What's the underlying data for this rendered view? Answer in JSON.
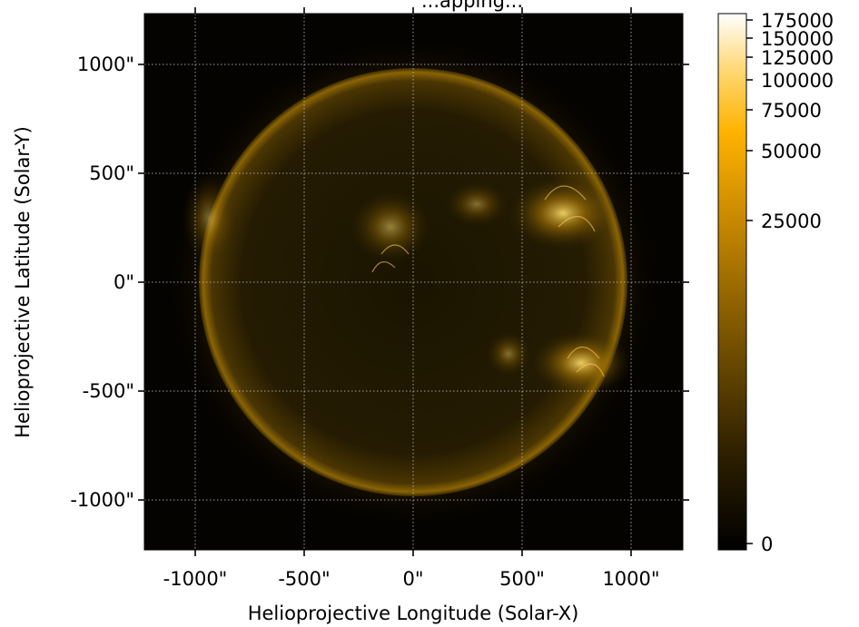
{
  "plot": {
    "title": "...apping...",
    "xlabel": "Helioprojective Longitude (Solar-X)",
    "ylabel": "Helioprojective Latitude (Solar-Y)",
    "x_ticks": [
      "-1000\"",
      "-500\"",
      "0\"",
      "500\"",
      "1000\""
    ],
    "y_ticks": [
      "1000\"",
      "500\"",
      "0\"",
      "-500\"",
      "-1000\""
    ],
    "grid": "dotted",
    "colors": {
      "background": "#050300",
      "disk": "#2a1f02",
      "limb": "#9a7006",
      "bright": "#ffd040"
    }
  },
  "colorbar": {
    "labels": [
      "175000",
      "150000",
      "125000",
      "100000",
      "75000",
      "50000",
      "25000",
      "0"
    ],
    "colors": [
      "#000000",
      "#3a2800",
      "#7a5600",
      "#c08500",
      "#ffb300",
      "#ffe07a",
      "#ffffff"
    ]
  }
}
